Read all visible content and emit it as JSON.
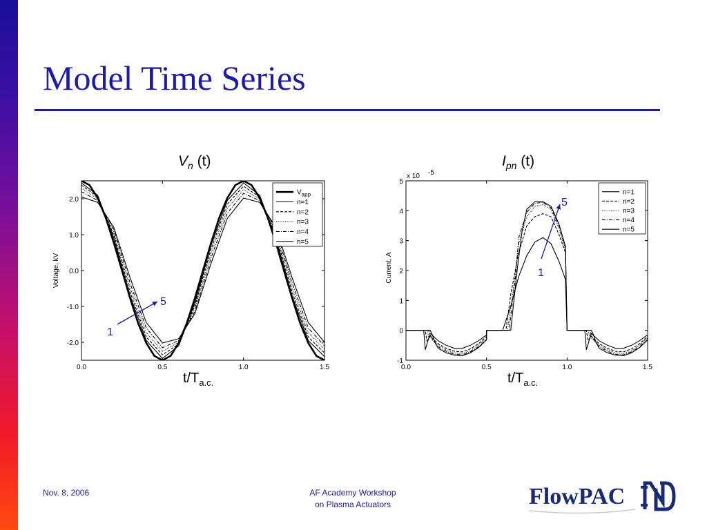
{
  "slide": {
    "title": "Model Time Series",
    "footer_date": "Nov. 8, 2006",
    "footer_line1": "AF Academy Workshop",
    "footer_line2": "on Plasma Actuators",
    "logo_text": "FlowPAC"
  },
  "colors": {
    "title": "#1a1ab0",
    "footer": "#1a1ab0",
    "annotation_arrow": "#1a1ab0",
    "curves": "#000000"
  },
  "chart_data": [
    {
      "type": "line",
      "title_symbol": "V",
      "title_sub": "n",
      "title_rest": "(t)",
      "xlabel_main": "t/T",
      "xlabel_sub": "a.c.",
      "ylabel": "Voltage, kV",
      "xlim": [
        0,
        1.5
      ],
      "ylim": [
        -2.5,
        2.5
      ],
      "xticks": [
        0.0,
        0.5,
        1.0,
        1.5
      ],
      "xtick_labels": [
        "0.0",
        "0.5",
        "1.0",
        "1.5"
      ],
      "yticks": [
        2.0,
        1.0,
        0.0,
        -1.0,
        -2.0
      ],
      "ytick_labels": [
        "2.0",
        "1.0",
        "0.0",
        "-1.0",
        "-2.0"
      ],
      "legend_position": "top-right",
      "annotation_start": "1",
      "annotation_end": "5",
      "series": [
        {
          "name": "V",
          "name_sub": "app",
          "style": "thick",
          "x": [
            0,
            0.05,
            0.1,
            0.15,
            0.2,
            0.25,
            0.3,
            0.35,
            0.4,
            0.45,
            0.5,
            0.55,
            0.6,
            0.65,
            0.7,
            0.75,
            0.8,
            0.85,
            0.9,
            0.95,
            1.0,
            1.05,
            1.1,
            1.15,
            1.2,
            1.25,
            1.3,
            1.35,
            1.4,
            1.45,
            1.5
          ],
          "y": [
            2.5,
            2.38,
            2.02,
            1.47,
            0.77,
            0.0,
            -0.77,
            -1.47,
            -2.02,
            -2.38,
            -2.5,
            -2.38,
            -2.02,
            -1.47,
            -0.77,
            0.0,
            0.77,
            1.47,
            2.02,
            2.38,
            2.5,
            2.38,
            2.02,
            1.47,
            0.77,
            0.0,
            -0.77,
            -1.47,
            -2.02,
            -2.38,
            -2.5
          ]
        },
        {
          "name": "n=1",
          "style": "solid",
          "x": [
            0,
            0.1,
            0.2,
            0.3,
            0.4,
            0.5,
            0.6,
            0.7,
            0.8,
            0.9,
            1.0,
            1.1,
            1.2,
            1.3,
            1.4,
            1.5
          ],
          "y": [
            2.44,
            2.1,
            0.9,
            -0.7,
            -1.95,
            -2.45,
            -2.1,
            -0.9,
            0.7,
            1.95,
            2.44,
            2.1,
            0.9,
            -0.7,
            -1.95,
            -2.4
          ]
        },
        {
          "name": "n=2",
          "style": "dashed",
          "x": [
            0,
            0.1,
            0.2,
            0.3,
            0.4,
            0.5,
            0.6,
            0.7,
            0.8,
            0.9,
            1.0,
            1.1,
            1.2,
            1.3,
            1.4,
            1.5
          ],
          "y": [
            2.38,
            2.05,
            0.98,
            -0.6,
            -1.85,
            -2.35,
            -2.05,
            -0.98,
            0.6,
            1.85,
            2.35,
            2.05,
            0.98,
            -0.6,
            -1.85,
            -2.3
          ]
        },
        {
          "name": "n=3",
          "style": "dotted",
          "x": [
            0,
            0.1,
            0.2,
            0.3,
            0.4,
            0.5,
            0.6,
            0.7,
            0.8,
            0.9,
            1.0,
            1.1,
            1.2,
            1.3,
            1.4,
            1.5
          ],
          "y": [
            2.3,
            2.0,
            1.06,
            -0.48,
            -1.73,
            -2.25,
            -2.0,
            -1.06,
            0.48,
            1.73,
            2.25,
            2.0,
            1.06,
            -0.48,
            -1.73,
            -2.2
          ]
        },
        {
          "name": "n=4",
          "style": "dashdot",
          "x": [
            0,
            0.1,
            0.2,
            0.3,
            0.4,
            0.5,
            0.6,
            0.7,
            0.8,
            0.9,
            1.0,
            1.1,
            1.2,
            1.3,
            1.4,
            1.5
          ],
          "y": [
            2.2,
            1.95,
            1.14,
            -0.35,
            -1.6,
            -2.15,
            -1.95,
            -1.14,
            0.35,
            1.6,
            2.15,
            1.95,
            1.14,
            -0.35,
            -1.6,
            -2.1
          ]
        },
        {
          "name": "n=5",
          "style": "solid",
          "x": [
            0,
            0.1,
            0.2,
            0.3,
            0.4,
            0.5,
            0.6,
            0.7,
            0.8,
            0.9,
            1.0,
            1.1,
            1.2,
            1.3,
            1.4,
            1.5
          ],
          "y": [
            2.05,
            1.9,
            1.2,
            -0.2,
            -1.45,
            -2.02,
            -1.9,
            -1.2,
            0.2,
            1.45,
            2.02,
            1.9,
            1.2,
            -0.2,
            -1.45,
            -2.0
          ]
        }
      ]
    },
    {
      "type": "line",
      "title_symbol": "I",
      "title_sub": "pn",
      "title_rest": "(t)",
      "xlabel_main": "t/T",
      "xlabel_sub": "a.c.",
      "ylabel": "Current, A",
      "scale_label": "x 10",
      "scale_exponent": "-5",
      "xlim": [
        0,
        1.5
      ],
      "ylim": [
        -1,
        5
      ],
      "xticks": [
        0.0,
        0.5,
        1.0,
        1.5
      ],
      "xtick_labels": [
        "0.0",
        "0.5",
        "1.0",
        "1.5"
      ],
      "yticks": [
        5,
        4,
        3,
        2,
        1,
        0,
        -1
      ],
      "ytick_labels": [
        "5",
        "4",
        "3",
        "2",
        "1",
        "0",
        "-1"
      ],
      "legend_position": "top-right",
      "annotation_start": "1",
      "annotation_end": "5",
      "series": [
        {
          "name": "n=1",
          "style": "solid",
          "x": [
            0,
            0.1,
            0.11,
            0.12,
            0.15,
            0.2,
            0.25,
            0.3,
            0.35,
            0.4,
            0.45,
            0.5,
            0.5,
            0.55,
            0.6,
            0.65,
            0.7,
            0.75,
            0.8,
            0.85,
            0.9,
            0.95,
            0.99,
            1.0,
            1.1,
            1.11,
            1.12,
            1.15,
            1.2,
            1.25,
            1.3,
            1.35,
            1.4,
            1.45,
            1.5
          ],
          "y": [
            0,
            0,
            0,
            -0.65,
            -0.1,
            -0.35,
            -0.5,
            -0.6,
            -0.6,
            -0.5,
            -0.35,
            -0.15,
            0,
            0,
            0,
            0.8,
            1.8,
            2.5,
            2.95,
            3.1,
            2.9,
            2.3,
            1.7,
            0,
            0,
            0,
            -0.65,
            -0.1,
            -0.35,
            -0.5,
            -0.6,
            -0.6,
            -0.5,
            -0.35,
            -0.15
          ]
        },
        {
          "name": "n=2",
          "style": "dashed",
          "x": [
            0,
            0.12,
            0.13,
            0.15,
            0.2,
            0.25,
            0.3,
            0.35,
            0.4,
            0.45,
            0.5,
            0.5,
            0.55,
            0.62,
            0.65,
            0.7,
            0.75,
            0.8,
            0.85,
            0.9,
            0.95,
            0.99,
            1.0,
            1.12,
            1.13,
            1.15,
            1.2,
            1.25,
            1.3,
            1.35,
            1.4,
            1.45,
            1.5
          ],
          "y": [
            0,
            0,
            -0.35,
            -0.2,
            -0.45,
            -0.6,
            -0.7,
            -0.72,
            -0.62,
            -0.45,
            -0.2,
            0,
            0,
            0,
            1.2,
            2.6,
            3.5,
            3.8,
            3.9,
            3.8,
            3.2,
            2.6,
            0,
            0,
            -0.35,
            -0.2,
            -0.45,
            -0.6,
            -0.7,
            -0.72,
            -0.62,
            -0.45,
            -0.2
          ]
        },
        {
          "name": "n=3",
          "style": "dotted",
          "x": [
            0,
            0.13,
            0.14,
            0.16,
            0.2,
            0.25,
            0.3,
            0.35,
            0.4,
            0.45,
            0.5,
            0.5,
            0.55,
            0.63,
            0.67,
            0.7,
            0.75,
            0.8,
            0.85,
            0.9,
            0.95,
            0.99,
            1.0,
            1.13,
            1.14,
            1.16,
            1.2,
            1.25,
            1.3,
            1.35,
            1.4,
            1.45,
            1.5
          ],
          "y": [
            0,
            0,
            -0.2,
            -0.3,
            -0.5,
            -0.65,
            -0.75,
            -0.78,
            -0.68,
            -0.5,
            -0.25,
            0,
            0,
            0,
            1.5,
            2.9,
            3.8,
            4.15,
            4.2,
            4.05,
            3.4,
            2.7,
            0,
            0,
            -0.2,
            -0.3,
            -0.5,
            -0.65,
            -0.75,
            -0.78,
            -0.68,
            -0.5,
            -0.25
          ]
        },
        {
          "name": "n=4",
          "style": "dashdot",
          "x": [
            0,
            0.14,
            0.15,
            0.17,
            0.2,
            0.25,
            0.3,
            0.35,
            0.4,
            0.45,
            0.5,
            0.5,
            0.55,
            0.64,
            0.68,
            0.7,
            0.75,
            0.8,
            0.85,
            0.9,
            0.95,
            0.99,
            1.0,
            1.14,
            1.15,
            1.17,
            1.2,
            1.25,
            1.3,
            1.35,
            1.4,
            1.45,
            1.5
          ],
          "y": [
            0,
            0,
            -0.15,
            -0.35,
            -0.55,
            -0.7,
            -0.8,
            -0.82,
            -0.72,
            -0.55,
            -0.3,
            0,
            0,
            0,
            1.8,
            3.1,
            3.95,
            4.25,
            4.28,
            4.1,
            3.5,
            2.75,
            0,
            0,
            -0.15,
            -0.35,
            -0.55,
            -0.7,
            -0.8,
            -0.82,
            -0.72,
            -0.55,
            -0.3
          ]
        },
        {
          "name": "n=5",
          "style": "solid",
          "x": [
            0,
            0.15,
            0.16,
            0.18,
            0.2,
            0.25,
            0.3,
            0.35,
            0.4,
            0.45,
            0.5,
            0.5,
            0.55,
            0.65,
            0.69,
            0.72,
            0.75,
            0.8,
            0.85,
            0.9,
            0.95,
            0.99,
            1.0,
            1.15,
            1.16,
            1.18,
            1.2,
            1.25,
            1.3,
            1.35,
            1.4,
            1.45,
            1.5
          ],
          "y": [
            0,
            0,
            -0.1,
            -0.4,
            -0.6,
            -0.75,
            -0.83,
            -0.85,
            -0.75,
            -0.58,
            -0.32,
            0,
            0,
            0,
            2.0,
            3.3,
            4.05,
            4.3,
            4.3,
            4.15,
            3.55,
            2.8,
            0,
            0,
            -0.1,
            -0.4,
            -0.6,
            -0.75,
            -0.83,
            -0.85,
            -0.75,
            -0.58,
            -0.32
          ]
        }
      ]
    }
  ]
}
